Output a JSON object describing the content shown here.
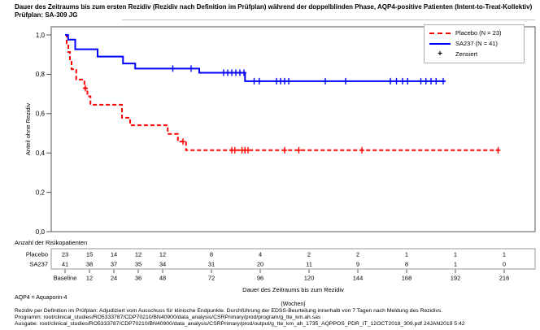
{
  "header": {
    "title_line1": "Dauer des Zeitraums bis zum ersten Rezidiv (Rezidiv nach Definition im Prüfplan) während der doppelblinden Phase, AQP4-positive Patienten (Intent-to-Treat-Kollektiv)",
    "title_line2": "Prüfplan: SA-309 JG"
  },
  "legend": {
    "items": [
      {
        "label": "Placebo (N = 23)",
        "color": "#ff0000",
        "style": "dashed"
      },
      {
        "label": "SA237 (N = 41)",
        "color": "#0000ff",
        "style": "solid"
      },
      {
        "label": "Zensiert",
        "marker": "+"
      }
    ]
  },
  "chart_data": {
    "type": "line",
    "subtype": "kaplan-meier-step",
    "title": "Dauer des Zeitraums bis zum ersten Rezidiv während der doppelblinden Phase, AQP4-positive Patienten",
    "ylabel": "Anteil ohne Rezidiv",
    "xlabel_line1": "Dauer des Zeitraums bis zum Rezidiv",
    "xlabel_line2": "(Wochen)",
    "xlim": [
      0,
      228
    ],
    "ylim": [
      0,
      1
    ],
    "grid": false,
    "legend_position": "top-right-inside",
    "x_ticks": [
      {
        "week": 0,
        "label": "Baseline"
      },
      {
        "week": 12,
        "label": "12"
      },
      {
        "week": 24,
        "label": "24"
      },
      {
        "week": 36,
        "label": "36"
      },
      {
        "week": 48,
        "label": "48"
      },
      {
        "week": 72,
        "label": "72"
      },
      {
        "week": 96,
        "label": "96"
      },
      {
        "week": 120,
        "label": "120"
      },
      {
        "week": 144,
        "label": "144"
      },
      {
        "week": 168,
        "label": "168"
      },
      {
        "week": 192,
        "label": "192"
      },
      {
        "week": 216,
        "label": "216"
      }
    ],
    "y_ticks": [
      {
        "value": 0.0,
        "label": "0,0"
      },
      {
        "value": 0.2,
        "label": "0,2"
      },
      {
        "value": 0.4,
        "label": "0,4"
      },
      {
        "value": 0.6,
        "label": "0,6"
      },
      {
        "value": 0.8,
        "label": "0,8"
      },
      {
        "value": 1.0,
        "label": "1,0"
      }
    ],
    "series": [
      {
        "name": "Placebo",
        "n": 23,
        "color": "#ff0000",
        "line_style": "dashed",
        "steps": [
          [
            0,
            1.0
          ],
          [
            0.8,
            0.957
          ],
          [
            1.6,
            0.913
          ],
          [
            2.4,
            0.87
          ],
          [
            3.2,
            0.826
          ],
          [
            5.5,
            0.773
          ],
          [
            9.5,
            0.729
          ],
          [
            11,
            0.688
          ],
          [
            12.5,
            0.645
          ],
          [
            28,
            0.579
          ],
          [
            32,
            0.541
          ],
          [
            50.5,
            0.497
          ],
          [
            55.5,
            0.458
          ],
          [
            59.5,
            0.414
          ]
        ],
        "end_week": 213.5,
        "censored": [
          [
            10,
            0.729
          ],
          [
            58,
            0.458
          ],
          [
            82,
            0.414
          ],
          [
            83.5,
            0.414
          ],
          [
            87,
            0.414
          ],
          [
            88.5,
            0.414
          ],
          [
            90,
            0.414
          ],
          [
            108,
            0.414
          ],
          [
            115,
            0.414
          ],
          [
            146,
            0.414
          ],
          [
            213,
            0.414
          ]
        ]
      },
      {
        "name": "SA237",
        "n": 41,
        "color": "#0000ff",
        "line_style": "solid",
        "steps": [
          [
            0,
            1.0
          ],
          [
            1.5,
            0.976
          ],
          [
            5,
            0.927
          ],
          [
            16,
            0.89
          ],
          [
            28.5,
            0.855
          ],
          [
            34.5,
            0.829
          ],
          [
            66,
            0.808
          ],
          [
            88.5,
            0.765
          ]
        ],
        "end_week": 187,
        "censored": [
          [
            53,
            0.829
          ],
          [
            62,
            0.829
          ],
          [
            78,
            0.808
          ],
          [
            80,
            0.808
          ],
          [
            82,
            0.808
          ],
          [
            84,
            0.808
          ],
          [
            86,
            0.808
          ],
          [
            88,
            0.808
          ],
          [
            93,
            0.765
          ],
          [
            95.5,
            0.765
          ],
          [
            104,
            0.765
          ],
          [
            106,
            0.765
          ],
          [
            108,
            0.765
          ],
          [
            110,
            0.765
          ],
          [
            128,
            0.765
          ],
          [
            138,
            0.765
          ],
          [
            160,
            0.765
          ],
          [
            163,
            0.765
          ],
          [
            166,
            0.765
          ],
          [
            168.5,
            0.765
          ],
          [
            175,
            0.765
          ],
          [
            177.5,
            0.765
          ],
          [
            180,
            0.765
          ],
          [
            182.5,
            0.765
          ],
          [
            186,
            0.765
          ]
        ]
      }
    ]
  },
  "risk_table": {
    "header": "Anzahl der Risikopatienten",
    "weeks": [
      0,
      12,
      24,
      36,
      48,
      72,
      96,
      120,
      144,
      168,
      192,
      216
    ],
    "rows": [
      {
        "label": "Placebo",
        "counts": [
          "23",
          "15",
          "14",
          "12",
          "12",
          "8",
          "4",
          "2",
          "2",
          "1",
          "1",
          "1"
        ]
      },
      {
        "label": "SA237",
        "counts": [
          "41",
          "38",
          "37",
          "35",
          "34",
          "31",
          "20",
          "11",
          "9",
          "8",
          "1",
          "0"
        ]
      }
    ]
  },
  "footnotes": {
    "aqp4": "AQP4 = Aquaporin-4",
    "definition": "Rezidiv per Definition im Prüfplan: Adjudiziert vom Ausschuss für klinische Endpunkte. Durchführung der EDSS-Beurteilung innerhalb von 7 Tagen nach Meldung des Rezidivs.",
    "program": "Programm: root/clinical_studies/RO5333787/CDP70210/BN40900/data_analysis/CSRPrimary/prod/program/g_tte_km.ah.sas",
    "output": "Ausgabe: root/clinical_studies/RO5333787/CDP70210/BN40900/data_analysis/CSRPrimary/prod/output/g_tte_km_ah_1735_AQPPOS_PDR_IT_12OCT2018_309.pdf 24JAN2019 5:42"
  }
}
